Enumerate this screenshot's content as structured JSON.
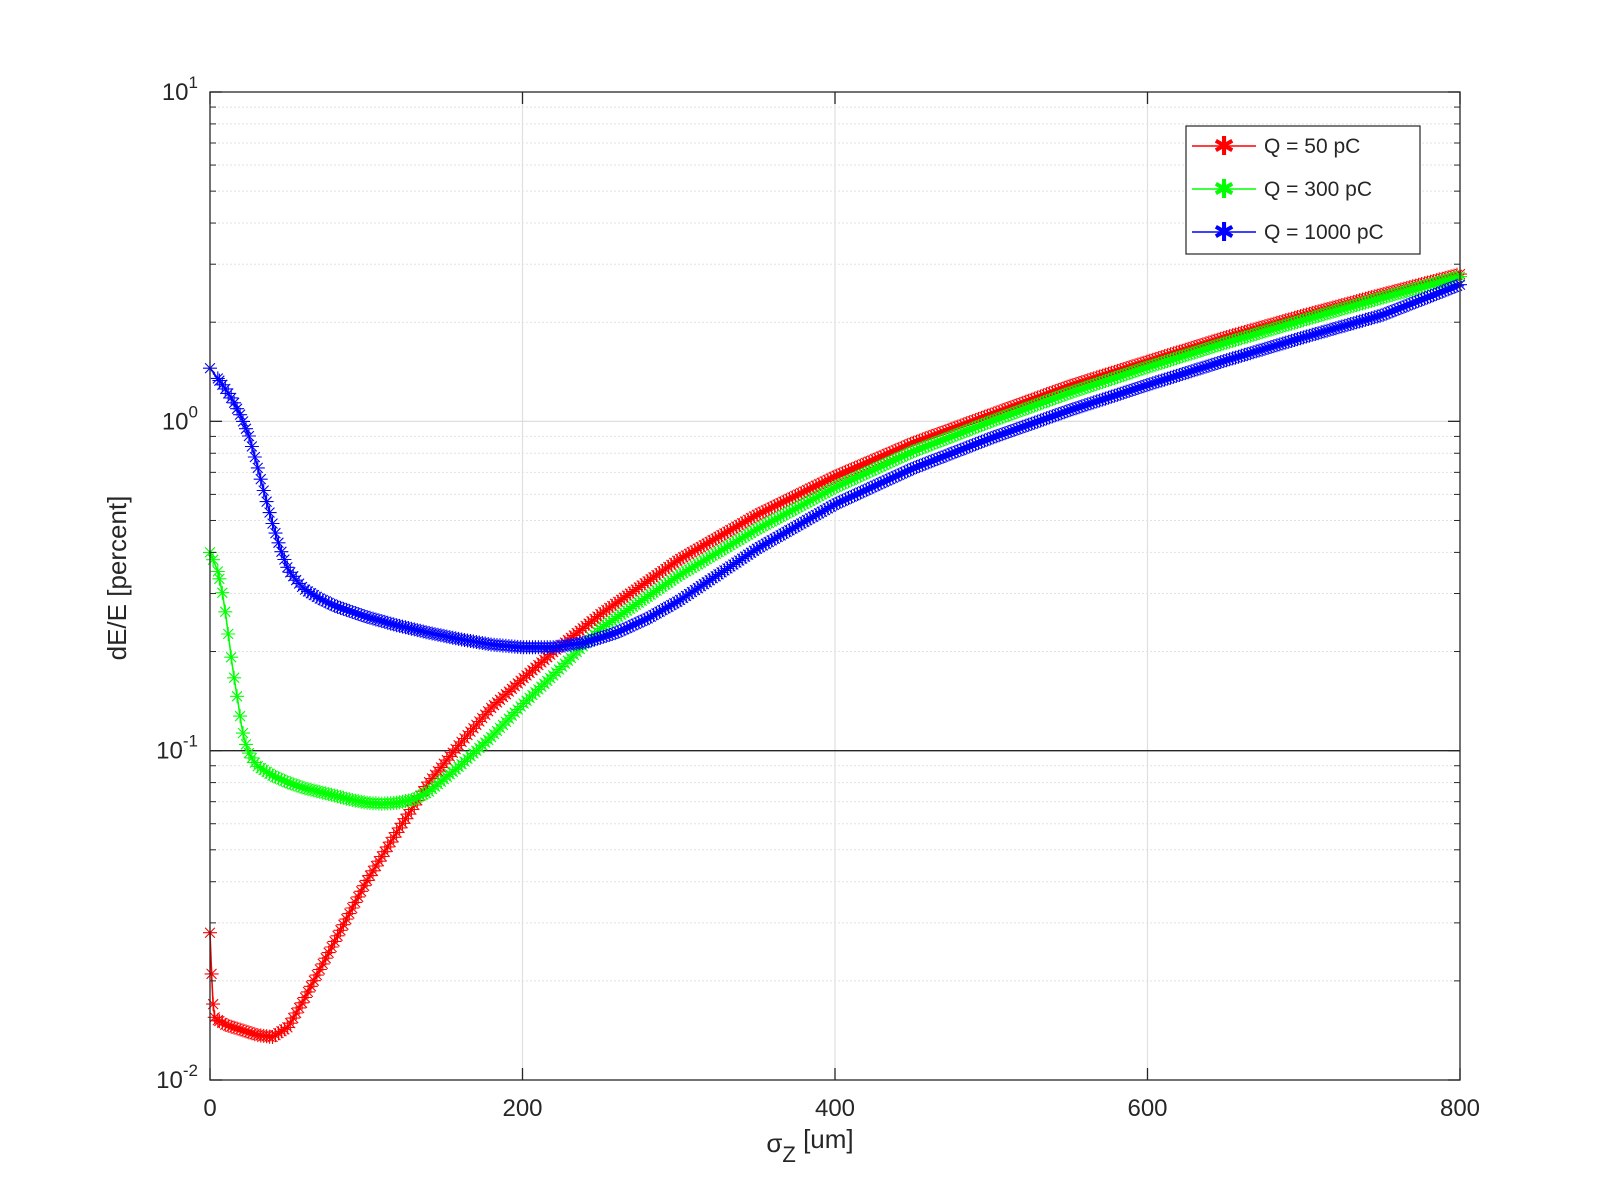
{
  "chart_data": {
    "type": "line",
    "xlabel": "σ",
    "xlabel_sub": "Z",
    "xlabel_unit": " [um]",
    "ylabel": "dE/E [percent]",
    "yscale": "log",
    "xlim": [
      0,
      800
    ],
    "ylim": [
      0.01,
      10
    ],
    "xticks": [
      "0",
      "200",
      "400",
      "600",
      "800"
    ],
    "yticks": [
      {
        "base": "10",
        "exp": "-2"
      },
      {
        "base": "10",
        "exp": "-1"
      },
      {
        "base": "10",
        "exp": "0"
      },
      {
        "base": "10",
        "exp": "1"
      }
    ],
    "grid": true,
    "legend_position": "top-right",
    "reference_line_y": 0.1,
    "series": [
      {
        "name": "Q = 50 pC",
        "color": "#ff0000",
        "x": [
          0,
          1,
          2,
          3,
          5,
          10,
          20,
          30,
          40,
          50,
          60,
          80,
          100,
          120,
          140,
          160,
          180,
          200,
          220,
          250,
          300,
          350,
          400,
          450,
          500,
          550,
          600,
          650,
          700,
          750,
          800
        ],
        "y": [
          0.028,
          0.021,
          0.017,
          0.0155,
          0.0152,
          0.0147,
          0.0142,
          0.0137,
          0.0135,
          0.0145,
          0.0175,
          0.0265,
          0.04,
          0.057,
          0.08,
          0.105,
          0.135,
          0.165,
          0.2,
          0.26,
          0.38,
          0.52,
          0.68,
          0.86,
          1.05,
          1.28,
          1.52,
          1.8,
          2.1,
          2.43,
          2.8
        ]
      },
      {
        "name": "Q = 300 pC",
        "color": "#00ff00",
        "x": [
          0,
          2,
          5,
          8,
          10,
          12,
          14,
          16,
          18,
          20,
          22,
          25,
          30,
          35,
          40,
          50,
          60,
          70,
          80,
          90,
          100,
          110,
          120,
          130,
          140,
          160,
          180,
          200,
          220,
          250,
          300,
          350,
          400,
          450,
          500,
          550,
          600,
          650,
          700,
          750,
          800
        ],
        "y": [
          0.4,
          0.38,
          0.35,
          0.3,
          0.26,
          0.22,
          0.185,
          0.16,
          0.14,
          0.12,
          0.108,
          0.098,
          0.09,
          0.087,
          0.084,
          0.08,
          0.077,
          0.075,
          0.073,
          0.071,
          0.0695,
          0.069,
          0.0695,
          0.071,
          0.075,
          0.09,
          0.11,
          0.138,
          0.17,
          0.235,
          0.34,
          0.47,
          0.63,
          0.81,
          1.0,
          1.22,
          1.46,
          1.73,
          2.03,
          2.37,
          2.75
        ]
      },
      {
        "name": "Q = 1000 pC",
        "color": "#0000ff",
        "x": [
          0,
          5,
          10,
          15,
          20,
          25,
          30,
          35,
          40,
          45,
          50,
          55,
          60,
          70,
          80,
          100,
          120,
          140,
          160,
          180,
          200,
          220,
          240,
          260,
          280,
          300,
          350,
          400,
          450,
          500,
          550,
          600,
          650,
          700,
          750,
          800
        ],
        "y": [
          1.45,
          1.35,
          1.25,
          1.15,
          1.03,
          0.9,
          0.74,
          0.6,
          0.49,
          0.41,
          0.355,
          0.33,
          0.31,
          0.29,
          0.275,
          0.255,
          0.24,
          0.228,
          0.218,
          0.21,
          0.206,
          0.206,
          0.213,
          0.228,
          0.252,
          0.285,
          0.41,
          0.56,
          0.72,
          0.89,
          1.08,
          1.29,
          1.53,
          1.8,
          2.1,
          2.6
        ]
      }
    ]
  }
}
